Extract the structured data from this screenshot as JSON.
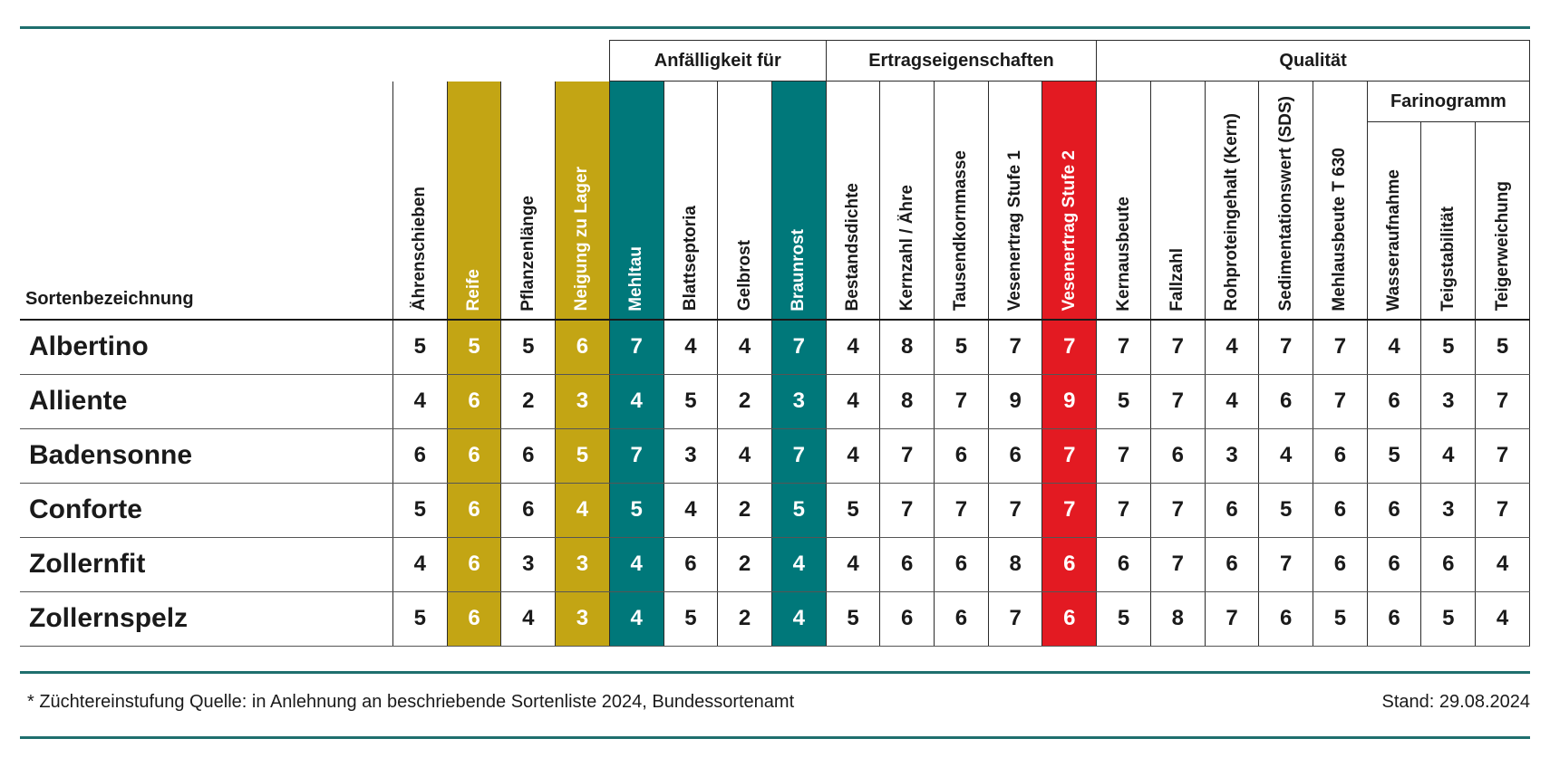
{
  "corner_label": "Sortenbezeichnung",
  "groups": {
    "anfaelligkeit": "Anfälligkeit für",
    "ertrag": "Ertragseigenschaften",
    "qualitaet": "Qualität",
    "farinogramm": "Farinogramm"
  },
  "columns": [
    {
      "label": "Ährenschieben",
      "style": "plain"
    },
    {
      "label": "Reife",
      "style": "gold"
    },
    {
      "label": "Pflanzenlänge",
      "style": "plain"
    },
    {
      "label": "Neigung zu Lager",
      "style": "gold"
    },
    {
      "label": "Mehltau",
      "style": "teal"
    },
    {
      "label": "Blattseptoria",
      "style": "plain"
    },
    {
      "label": "Gelbrost",
      "style": "plain"
    },
    {
      "label": "Braunrost",
      "style": "teal"
    },
    {
      "label": "Bestandsdichte",
      "style": "plain"
    },
    {
      "label": "Kernzahl / Ähre",
      "style": "plain"
    },
    {
      "label": "Tausendkornmasse",
      "style": "plain"
    },
    {
      "label": "Vesenertrag Stufe 1",
      "style": "plain"
    },
    {
      "label": "Vesenertrag Stufe 2",
      "style": "red"
    },
    {
      "label": "Kernausbeute",
      "style": "plain"
    },
    {
      "label": "Fallzahl",
      "style": "plain"
    },
    {
      "label": "Rohproteingehalt (Kern)",
      "style": "plain"
    },
    {
      "label": "Sedimentationswert (SDS)",
      "style": "plain"
    },
    {
      "label": "Mehlausbeute T 630",
      "style": "plain"
    },
    {
      "label": "Wasseraufnahme",
      "style": "plain"
    },
    {
      "label": "Teigstabilität",
      "style": "plain"
    },
    {
      "label": "Teigerweichung",
      "style": "plain"
    }
  ],
  "rows": [
    {
      "name": "Albertino",
      "values": [
        "5",
        "5",
        "5",
        "6",
        "7",
        "4",
        "4",
        "7",
        "4",
        "8",
        "5",
        "7",
        "7",
        "7",
        "7",
        "4",
        "7",
        "7",
        "4",
        "5",
        "5"
      ]
    },
    {
      "name": "Alliente",
      "values": [
        "4",
        "6",
        "2",
        "3",
        "4",
        "5",
        "2",
        "3",
        "4",
        "8",
        "7",
        "9",
        "9",
        "5",
        "7",
        "4",
        "6",
        "7",
        "6",
        "3",
        "7"
      ]
    },
    {
      "name": "Badensonne",
      "values": [
        "6",
        "6",
        "6",
        "5",
        "7",
        "3",
        "4",
        "7",
        "4",
        "7",
        "6",
        "6",
        "7",
        "7",
        "6",
        "3",
        "4",
        "6",
        "5",
        "4",
        "7"
      ]
    },
    {
      "name": "Conforte",
      "values": [
        "5",
        "6",
        "6",
        "4",
        "5",
        "4",
        "2",
        "5",
        "5",
        "7",
        "7",
        "7",
        "7",
        "7",
        "7",
        "6",
        "5",
        "6",
        "6",
        "3",
        "7"
      ]
    },
    {
      "name": "Zollernfit",
      "values": [
        "4",
        "6",
        "3",
        "3",
        "4",
        "6",
        "2",
        "4",
        "4",
        "6",
        "6",
        "8",
        "6",
        "6",
        "7",
        "6",
        "7",
        "6",
        "6",
        "6",
        "4"
      ]
    },
    {
      "name": "Zollernspelz",
      "values": [
        "5",
        "6",
        "4",
        "3",
        "4",
        "5",
        "2",
        "4",
        "5",
        "6",
        "6",
        "7",
        "6",
        "5",
        "8",
        "7",
        "6",
        "5",
        "6",
        "5",
        "4"
      ]
    }
  ],
  "footer": {
    "footnote": "* Züchtereinstufung Quelle: in Anlehnung an beschriebende Sortenliste 2024, Bundessortenamt",
    "stand": "Stand: 29.08.2024"
  },
  "colors": {
    "gold": "#c3a514",
    "teal": "#00787a",
    "red": "#e31a22",
    "rule": "#1f6f6e"
  }
}
